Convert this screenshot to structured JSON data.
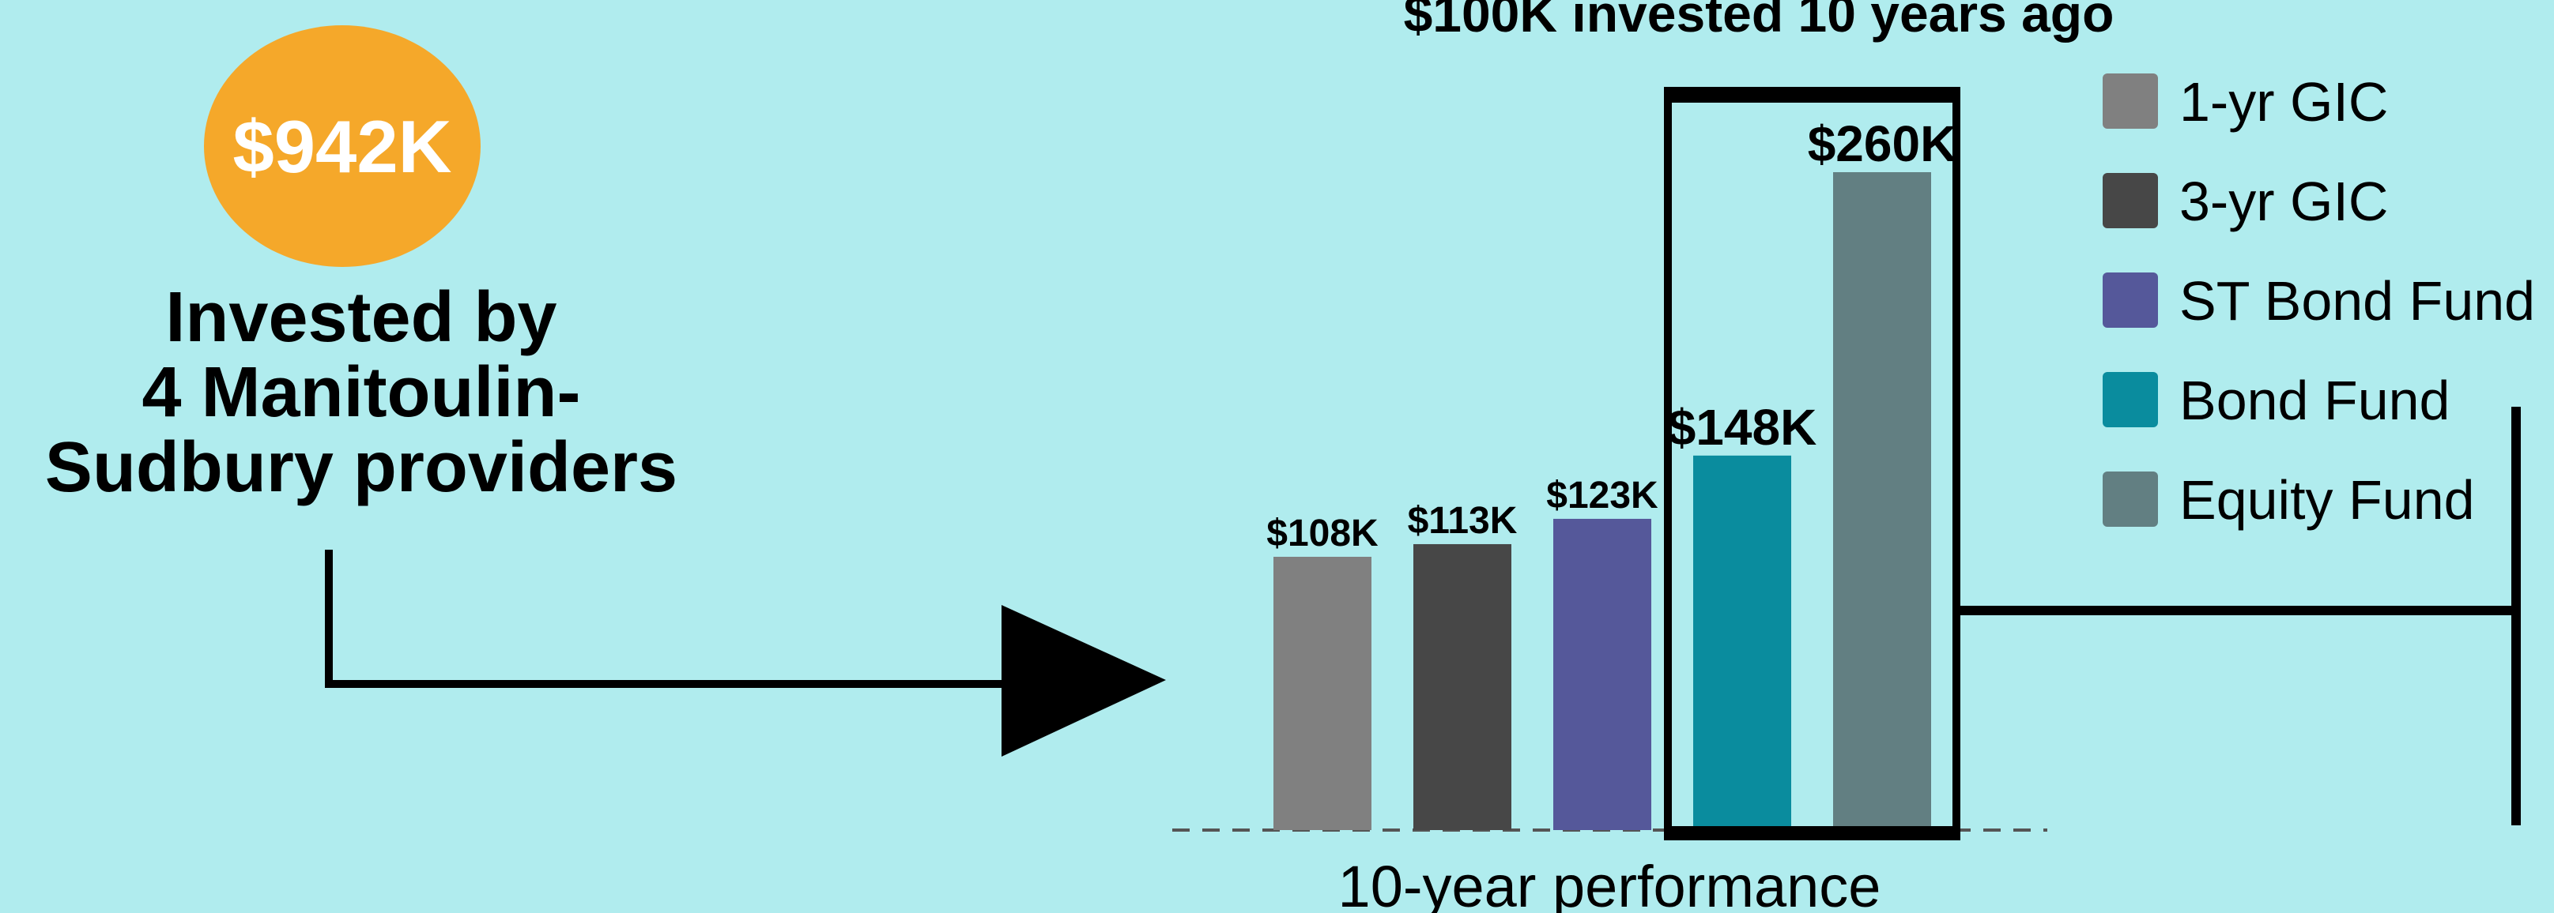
{
  "badge": {
    "text": "$942K"
  },
  "caption": {
    "lines": [
      "Invested by",
      "4 Manitoulin-",
      "Sudbury providers"
    ]
  },
  "chart_data": {
    "type": "bar",
    "title": "$100K invested 10 years ago",
    "x_label": "10-year performance",
    "categories": [
      "1-yr GIC",
      "3-yr GIC",
      "ST Bond Fund",
      "Bond Fund",
      "Equity Fund"
    ],
    "values": [
      108,
      113,
      123,
      148,
      260
    ],
    "value_labels": [
      "$108K",
      "$113K",
      "$123K",
      "$148K",
      "$260K"
    ],
    "colors": [
      "#808080",
      "#474747",
      "#55589a",
      "#0a8c9e",
      "#627f82"
    ],
    "legend": "right"
  }
}
